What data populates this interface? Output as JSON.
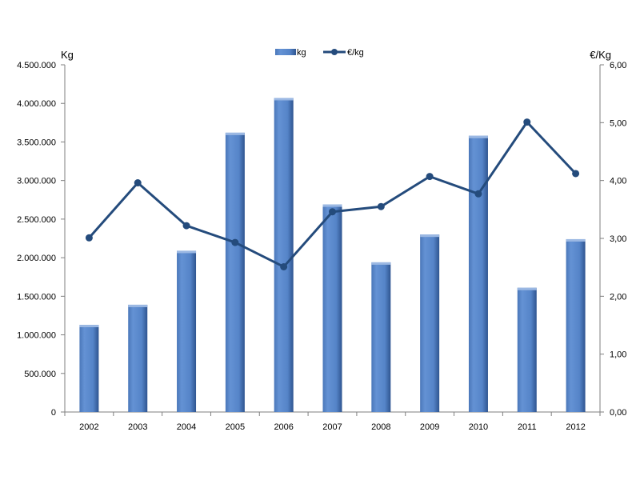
{
  "chart_data": {
    "type": "bar",
    "categories": [
      "2002",
      "2003",
      "2004",
      "2005",
      "2006",
      "2007",
      "2008",
      "2009",
      "2010",
      "2011",
      "2012"
    ],
    "series": [
      {
        "name": "kg",
        "type": "bar",
        "axis": "left",
        "color": "#5584c8",
        "values": [
          1130000,
          1390000,
          2090000,
          3620000,
          4070000,
          2690000,
          1940000,
          2300000,
          3580000,
          1610000,
          2240000
        ]
      },
      {
        "name": "€/kg",
        "type": "line",
        "axis": "right",
        "color": "#244b7c",
        "values": [
          3.01,
          3.96,
          3.22,
          2.93,
          2.51,
          3.46,
          3.55,
          4.07,
          3.77,
          5.01,
          4.12
        ]
      }
    ],
    "y_left": {
      "label": "Kg",
      "ylim": [
        0,
        4500000
      ],
      "ticks": [
        0,
        500000,
        1000000,
        1500000,
        2000000,
        2500000,
        3000000,
        3500000,
        4000000,
        4500000
      ],
      "tick_labels": [
        "0",
        "500.000",
        "1.000.000",
        "1.500.000",
        "2.000.000",
        "2.500.000",
        "3.000.000",
        "3.500.000",
        "4.000.000",
        "4.500.000"
      ]
    },
    "y_right": {
      "label": "€/Kg",
      "ylim": [
        0,
        6
      ],
      "ticks": [
        0,
        1,
        2,
        3,
        4,
        5,
        6
      ],
      "tick_labels": [
        "0,00",
        "1,00",
        "2,00",
        "3,00",
        "4,00",
        "5,00",
        "6,00"
      ]
    },
    "grid": false,
    "legend_position": "top-center"
  }
}
